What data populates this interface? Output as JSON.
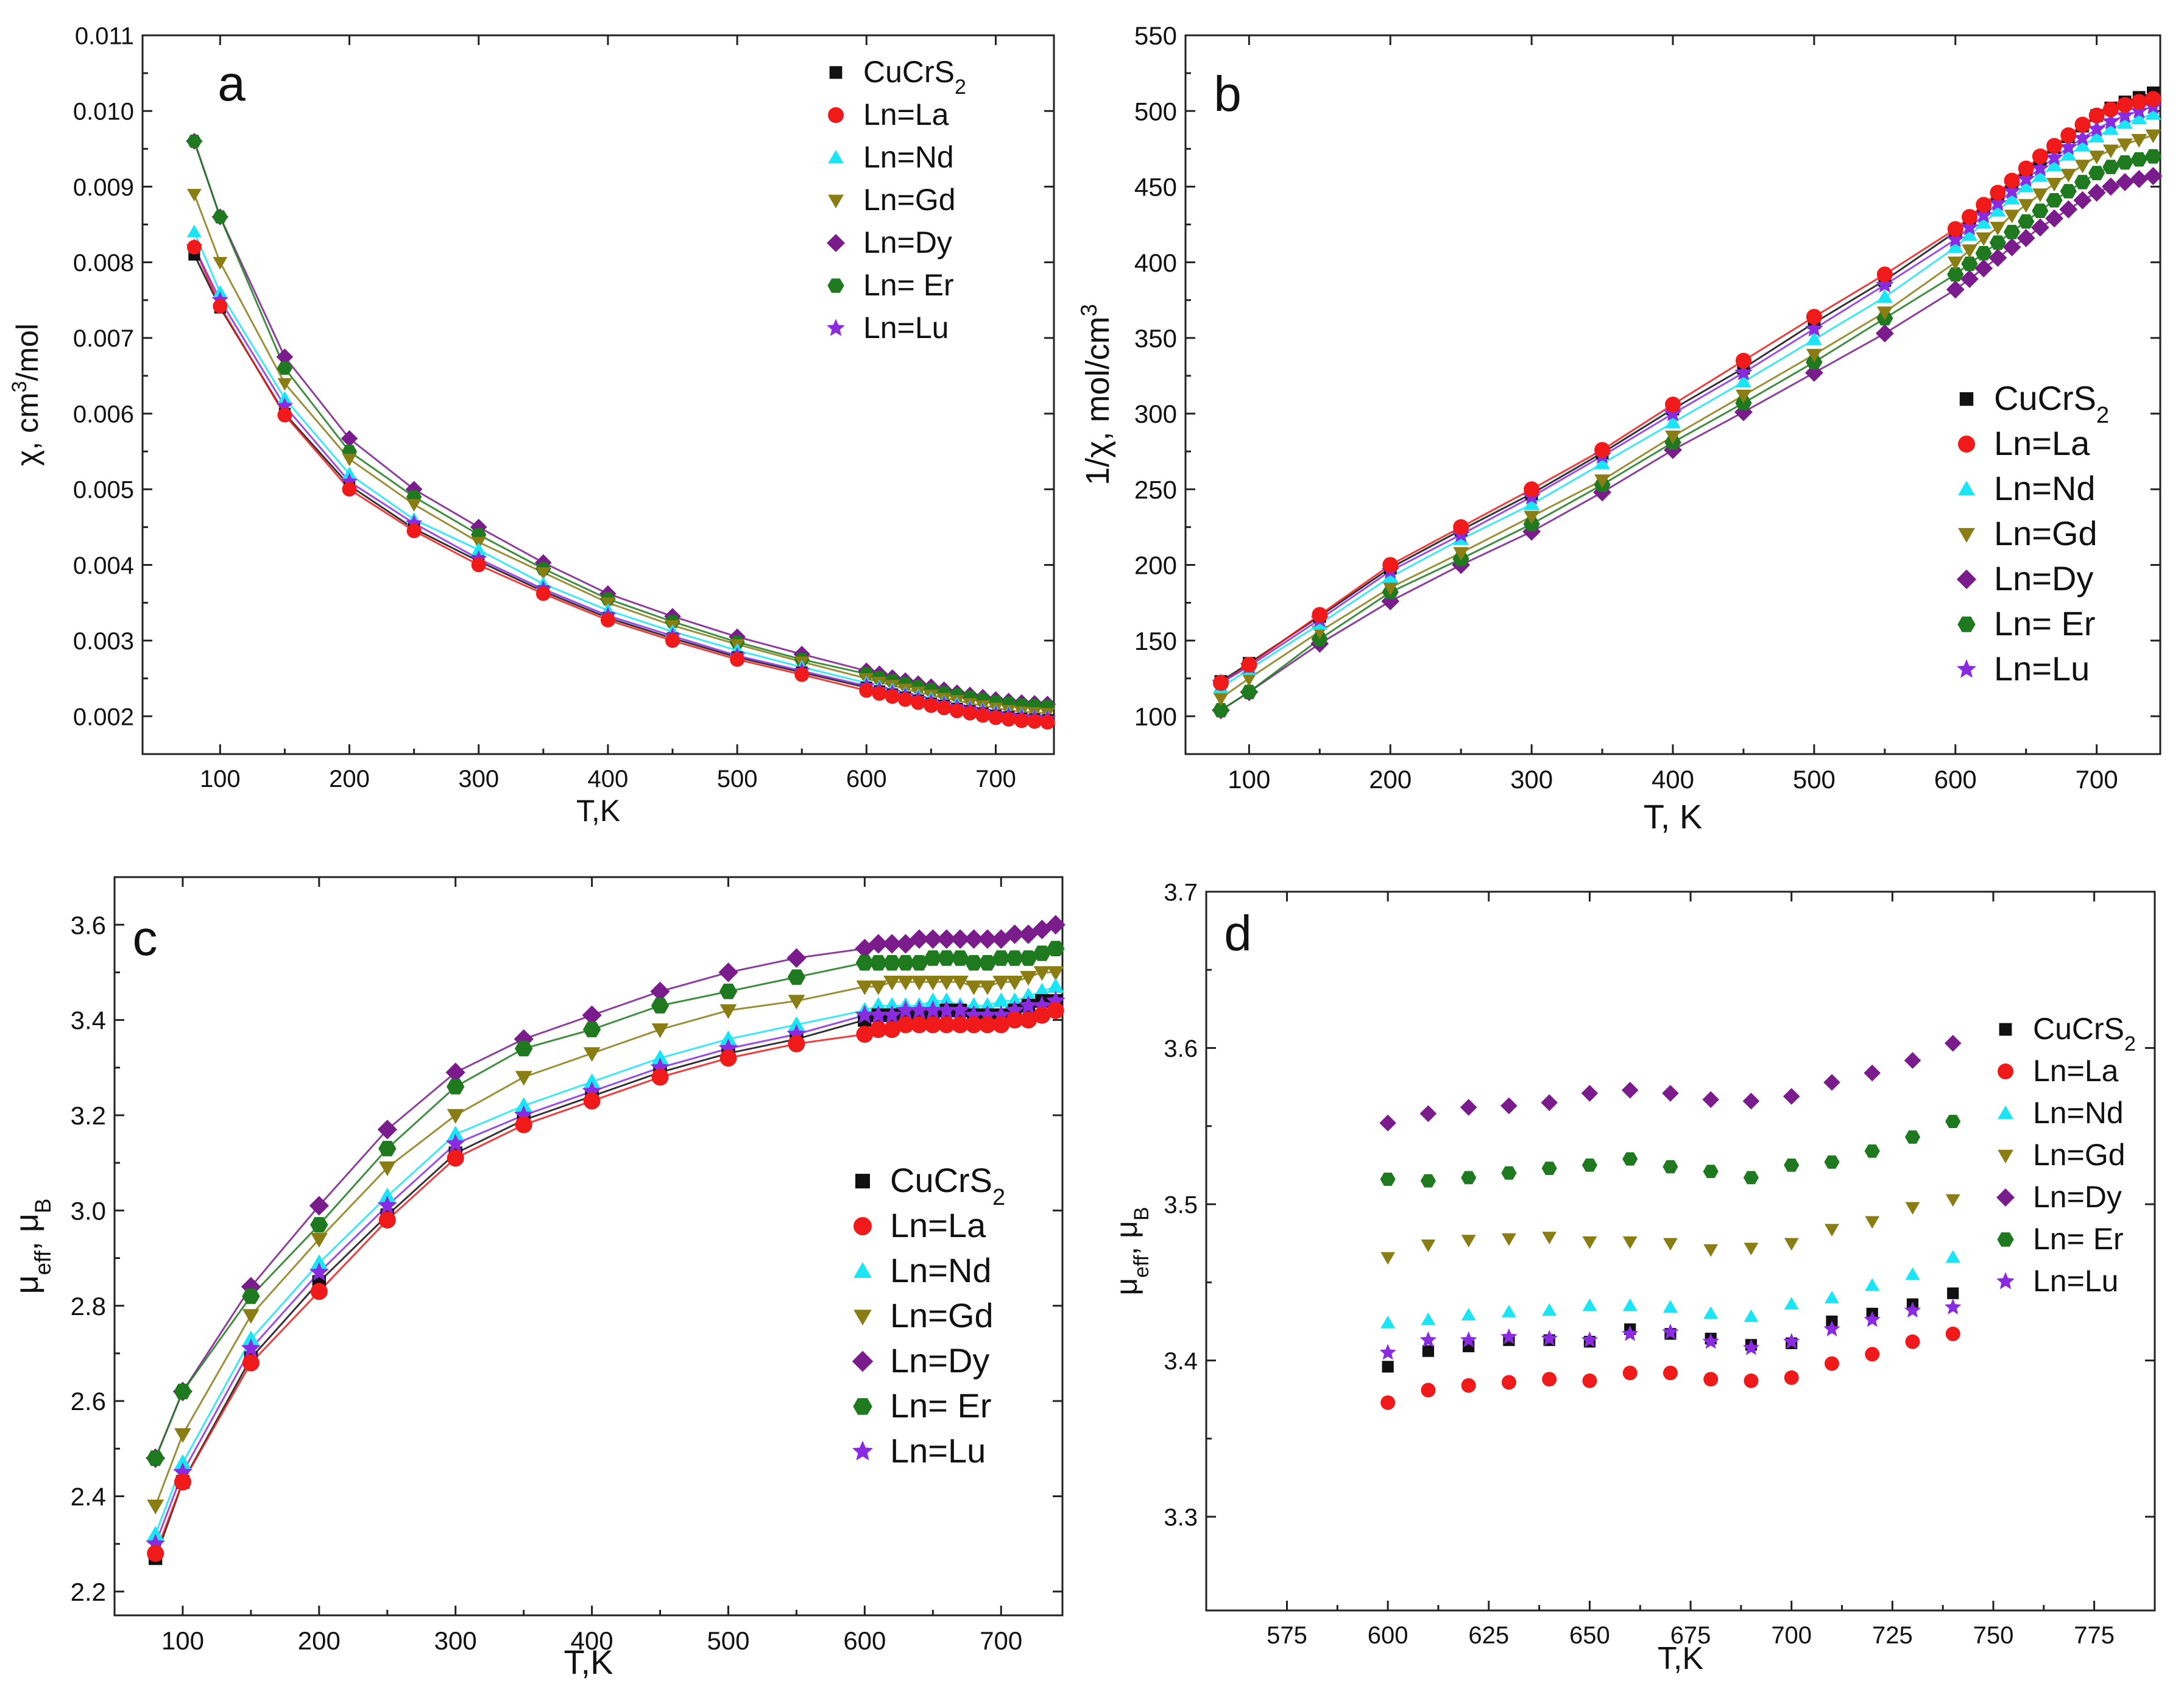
{
  "series_names": [
    "CuCrS₂",
    "Ln=La",
    "Ln=Nd",
    "Ln=Gd",
    "Ln=Dy",
    "Ln= Er",
    "Ln=Lu"
  ],
  "series_colors": [
    "#111111",
    "#f11a1a",
    "#19e5f5",
    "#8a7d14",
    "#7a1c8c",
    "#1f7a1f",
    "#8a2be2"
  ],
  "series_markers": [
    "square",
    "circle",
    "triangle-up",
    "triangle-down",
    "diamond",
    "hexagon",
    "star"
  ],
  "chart_data": [
    {
      "id": "a",
      "type": "scatter",
      "panel_label": "a",
      "xlabel": "T,K",
      "ylabel": "χ, cm³/mol",
      "xlim": [
        40,
        745
      ],
      "ylim": [
        0.0015,
        0.011
      ],
      "xticks": [
        100,
        200,
        300,
        400,
        500,
        600,
        700
      ],
      "yticks": [
        0.002,
        0.003,
        0.004,
        0.005,
        0.006,
        0.007,
        0.008,
        0.009,
        0.01,
        0.011
      ],
      "ytick_labels": [
        "0.002",
        "0.003",
        "0.004",
        "0.005",
        "0.006",
        "0.007",
        "0.008",
        "0.009",
        "0.010",
        "0.011"
      ],
      "legend": "top-right",
      "fit_lines": true,
      "x": [
        80,
        100,
        150,
        200,
        250,
        300,
        350,
        400,
        450,
        500,
        550,
        600,
        610,
        620,
        630,
        640,
        650,
        660,
        670,
        680,
        690,
        700,
        710,
        720,
        730,
        740
      ],
      "series": [
        {
          "name": "CuCrS₂",
          "values": [
            0.0081,
            0.0074,
            0.006,
            0.00505,
            0.00448,
            0.00405,
            0.00365,
            0.0033,
            0.00303,
            0.00278,
            0.00258,
            0.00238,
            0.00233,
            0.00229,
            0.00225,
            0.00221,
            0.00217,
            0.00214,
            0.0021,
            0.00207,
            0.00204,
            0.00201,
            0.00199,
            0.00197,
            0.00196,
            0.00195
          ]
        },
        {
          "name": "Ln=La",
          "values": [
            0.0082,
            0.00742,
            0.00598,
            0.005,
            0.00445,
            0.004,
            0.00362,
            0.00327,
            0.003,
            0.00275,
            0.00255,
            0.00234,
            0.0023,
            0.00226,
            0.00222,
            0.00218,
            0.00214,
            0.00211,
            0.00207,
            0.00204,
            0.00201,
            0.00198,
            0.00196,
            0.00194,
            0.00193,
            0.00192
          ]
        },
        {
          "name": "Ln=Nd",
          "values": [
            0.0084,
            0.0076,
            0.0062,
            0.0052,
            0.0046,
            0.0042,
            0.00375,
            0.0034,
            0.00312,
            0.00287,
            0.00265,
            0.00244,
            0.00239,
            0.00235,
            0.0023,
            0.00227,
            0.00223,
            0.00219,
            0.00216,
            0.00212,
            0.00209,
            0.00206,
            0.00204,
            0.00202,
            0.002,
            0.00199
          ]
        },
        {
          "name": "Ln=Gd",
          "values": [
            0.0089,
            0.008,
            0.0064,
            0.0054,
            0.0048,
            0.0043,
            0.0039,
            0.0035,
            0.0032,
            0.00295,
            0.00272,
            0.0025,
            0.00245,
            0.00241,
            0.00236,
            0.00232,
            0.00228,
            0.00224,
            0.00221,
            0.00217,
            0.00214,
            0.00211,
            0.00208,
            0.00206,
            0.00205,
            0.00204
          ]
        },
        {
          "name": "Ln=Dy",
          "values": [
            0.0096,
            0.0086,
            0.00675,
            0.00567,
            0.005,
            0.0045,
            0.00403,
            0.00362,
            0.00332,
            0.00305,
            0.00282,
            0.0026,
            0.00256,
            0.00251,
            0.00247,
            0.00243,
            0.00239,
            0.00235,
            0.00231,
            0.00228,
            0.00225,
            0.00222,
            0.0022,
            0.00218,
            0.00217,
            0.00216
          ]
        },
        {
          "name": "Ln= Er",
          "values": [
            0.0096,
            0.0086,
            0.0066,
            0.0055,
            0.0049,
            0.0044,
            0.00395,
            0.00355,
            0.00325,
            0.00298,
            0.00275,
            0.00256,
            0.00251,
            0.00247,
            0.00243,
            0.00239,
            0.00235,
            0.00231,
            0.00228,
            0.00225,
            0.00222,
            0.00219,
            0.00217,
            0.00215,
            0.00214,
            0.00213
          ]
        },
        {
          "name": "Ln=Lu",
          "values": [
            0.0082,
            0.0075,
            0.0061,
            0.0051,
            0.00455,
            0.00408,
            0.00368,
            0.00333,
            0.00306,
            0.0028,
            0.0026,
            0.0024,
            0.00235,
            0.00231,
            0.00227,
            0.00223,
            0.00219,
            0.00216,
            0.00212,
            0.00209,
            0.00206,
            0.00203,
            0.00201,
            0.00199,
            0.00198,
            0.00197
          ]
        }
      ]
    },
    {
      "id": "b",
      "type": "scatter",
      "panel_label": "b",
      "xlabel": "T, K",
      "ylabel": "1/χ, mol/cm³",
      "xlim": [
        55,
        745
      ],
      "ylim": [
        75,
        550
      ],
      "xticks": [
        100,
        200,
        300,
        400,
        500,
        600,
        700
      ],
      "yticks": [
        100,
        150,
        200,
        250,
        300,
        350,
        400,
        450,
        500,
        550
      ],
      "ytick_labels": [
        "100",
        "150",
        "200",
        "250",
        "300",
        "350",
        "400",
        "450",
        "500",
        "550"
      ],
      "legend": "right",
      "fit_lines": true,
      "x": [
        80,
        100,
        150,
        200,
        250,
        300,
        350,
        400,
        450,
        500,
        550,
        600,
        610,
        620,
        630,
        640,
        650,
        660,
        670,
        680,
        690,
        700,
        710,
        720,
        730,
        740
      ],
      "series": [
        {
          "name": "CuCrS₂",
          "values": [
            123,
            135,
            166,
            198,
            223,
            247,
            274,
            303,
            330,
            360,
            388,
            420,
            428,
            437,
            445,
            453,
            461,
            468,
            476,
            483,
            490,
            497,
            502,
            506,
            509,
            512
          ]
        },
        {
          "name": "Ln=La",
          "values": [
            122,
            134,
            167,
            200,
            225,
            250,
            276,
            306,
            335,
            364,
            392,
            422,
            430,
            438,
            446,
            454,
            462,
            470,
            477,
            484,
            491,
            497,
            501,
            504,
            506,
            508
          ]
        },
        {
          "name": "Ln=Nd",
          "values": [
            119,
            131,
            161,
            192,
            217,
            240,
            267,
            294,
            321,
            349,
            377,
            410,
            418,
            426,
            434,
            442,
            450,
            457,
            464,
            471,
            477,
            483,
            488,
            492,
            495,
            498
          ]
        },
        {
          "name": "Ln=Gd",
          "values": [
            112,
            125,
            156,
            185,
            208,
            232,
            256,
            285,
            312,
            339,
            367,
            400,
            408,
            416,
            423,
            431,
            438,
            445,
            452,
            458,
            464,
            470,
            474,
            478,
            481,
            484
          ]
        },
        {
          "name": "Ln=Dy",
          "values": [
            104,
            116,
            148,
            176,
            200,
            222,
            248,
            276,
            301,
            327,
            353,
            382,
            389,
            396,
            403,
            410,
            416,
            423,
            429,
            435,
            441,
            446,
            450,
            453,
            455,
            457
          ]
        },
        {
          "name": "Ln= Er",
          "values": [
            104,
            116,
            151,
            182,
            204,
            227,
            253,
            281,
            307,
            334,
            363,
            392,
            399,
            406,
            413,
            420,
            427,
            434,
            441,
            447,
            453,
            459,
            463,
            466,
            468,
            470
          ]
        },
        {
          "name": "Ln=Lu",
          "values": [
            122,
            133,
            164,
            196,
            220,
            245,
            272,
            300,
            327,
            356,
            385,
            415,
            423,
            431,
            439,
            447,
            455,
            462,
            469,
            476,
            482,
            488,
            493,
            497,
            500,
            503
          ]
        }
      ]
    },
    {
      "id": "c",
      "type": "scatter",
      "panel_label": "c",
      "xlabel": "T,K",
      "ylabel": "μeff, μB",
      "xlim": [
        50,
        745
      ],
      "ylim": [
        2.15,
        3.7
      ],
      "xticks": [
        100,
        200,
        300,
        400,
        500,
        600,
        700
      ],
      "yticks": [
        2.2,
        2.4,
        2.6,
        2.8,
        3.0,
        3.2,
        3.4,
        3.6
      ],
      "ytick_labels": [
        "2.2",
        "2.4",
        "2.6",
        "2.8",
        "3.0",
        "3.2",
        "3.4",
        "3.6"
      ],
      "legend": "bottom-right",
      "fit_lines": true,
      "x": [
        80,
        100,
        150,
        200,
        250,
        300,
        350,
        400,
        450,
        500,
        550,
        600,
        610,
        620,
        630,
        640,
        650,
        660,
        670,
        680,
        690,
        700,
        710,
        720,
        730,
        740
      ],
      "series": [
        {
          "name": "CuCrS₂",
          "values": [
            2.27,
            2.43,
            2.69,
            2.85,
            2.99,
            3.12,
            3.19,
            3.24,
            3.29,
            3.33,
            3.36,
            3.4,
            3.41,
            3.41,
            3.41,
            3.41,
            3.41,
            3.42,
            3.42,
            3.41,
            3.41,
            3.41,
            3.42,
            3.43,
            3.44,
            3.44
          ]
        },
        {
          "name": "Ln=La",
          "values": [
            2.28,
            2.43,
            2.68,
            2.83,
            2.98,
            3.11,
            3.18,
            3.23,
            3.28,
            3.32,
            3.35,
            3.37,
            3.38,
            3.38,
            3.39,
            3.39,
            3.39,
            3.39,
            3.39,
            3.39,
            3.39,
            3.39,
            3.4,
            3.4,
            3.41,
            3.42
          ]
        },
        {
          "name": "Ln=Nd",
          "values": [
            2.32,
            2.47,
            2.73,
            2.89,
            3.03,
            3.16,
            3.22,
            3.27,
            3.32,
            3.36,
            3.39,
            3.42,
            3.43,
            3.43,
            3.43,
            3.43,
            3.44,
            3.44,
            3.43,
            3.43,
            3.43,
            3.44,
            3.44,
            3.45,
            3.46,
            3.47
          ]
        },
        {
          "name": "Ln=Gd",
          "values": [
            2.38,
            2.53,
            2.78,
            2.94,
            3.09,
            3.2,
            3.28,
            3.33,
            3.38,
            3.42,
            3.44,
            3.47,
            3.47,
            3.48,
            3.48,
            3.48,
            3.48,
            3.48,
            3.48,
            3.47,
            3.47,
            3.48,
            3.48,
            3.49,
            3.5,
            3.5
          ]
        },
        {
          "name": "Ln=Dy",
          "values": [
            2.48,
            2.62,
            2.84,
            3.01,
            3.17,
            3.29,
            3.36,
            3.41,
            3.46,
            3.5,
            3.53,
            3.55,
            3.56,
            3.56,
            3.56,
            3.57,
            3.57,
            3.57,
            3.57,
            3.57,
            3.57,
            3.57,
            3.58,
            3.58,
            3.59,
            3.6
          ]
        },
        {
          "name": "Ln= Er",
          "values": [
            2.48,
            2.62,
            2.82,
            2.97,
            3.13,
            3.26,
            3.34,
            3.38,
            3.43,
            3.46,
            3.49,
            3.52,
            3.52,
            3.52,
            3.52,
            3.52,
            3.53,
            3.53,
            3.53,
            3.52,
            3.52,
            3.53,
            3.53,
            3.53,
            3.54,
            3.55
          ]
        },
        {
          "name": "Ln=Lu",
          "values": [
            2.3,
            2.45,
            2.71,
            2.87,
            3.01,
            3.14,
            3.2,
            3.25,
            3.3,
            3.34,
            3.37,
            3.41,
            3.41,
            3.41,
            3.42,
            3.42,
            3.42,
            3.42,
            3.42,
            3.41,
            3.41,
            3.41,
            3.42,
            3.43,
            3.43,
            3.44
          ]
        }
      ]
    },
    {
      "id": "d",
      "type": "scatter",
      "panel_label": "d",
      "xlabel": "T,K",
      "ylabel": "μeff, μB",
      "xlim": [
        555,
        790
      ],
      "ylim": [
        3.24,
        3.7
      ],
      "xticks": [
        575,
        600,
        625,
        650,
        675,
        700,
        725,
        750,
        775
      ],
      "yticks": [
        3.3,
        3.4,
        3.5,
        3.6,
        3.7
      ],
      "ytick_labels": [
        "3.3",
        "3.4",
        "3.5",
        "3.6",
        "3.7"
      ],
      "legend": "right",
      "fit_lines": false,
      "x": [
        600,
        610,
        620,
        630,
        640,
        650,
        660,
        670,
        680,
        690,
        700,
        710,
        720,
        730,
        740
      ],
      "series": [
        {
          "name": "CuCrS₂",
          "values": [
            3.396,
            3.406,
            3.409,
            3.413,
            3.413,
            3.412,
            3.42,
            3.417,
            3.414,
            3.41,
            3.411,
            3.425,
            3.43,
            3.436,
            3.443
          ]
        },
        {
          "name": "Ln=La",
          "values": [
            3.373,
            3.381,
            3.384,
            3.386,
            3.388,
            3.387,
            3.392,
            3.392,
            3.388,
            3.387,
            3.389,
            3.398,
            3.404,
            3.412,
            3.417
          ]
        },
        {
          "name": "Ln=Nd",
          "values": [
            3.424,
            3.426,
            3.429,
            3.431,
            3.432,
            3.435,
            3.435,
            3.434,
            3.43,
            3.428,
            3.436,
            3.44,
            3.448,
            3.455,
            3.466
          ]
        },
        {
          "name": "Ln=Gd",
          "values": [
            3.466,
            3.474,
            3.477,
            3.478,
            3.479,
            3.476,
            3.476,
            3.475,
            3.471,
            3.472,
            3.475,
            3.484,
            3.489,
            3.498,
            3.503
          ]
        },
        {
          "name": "Ln=Dy",
          "values": [
            3.552,
            3.558,
            3.562,
            3.563,
            3.565,
            3.571,
            3.573,
            3.571,
            3.567,
            3.566,
            3.569,
            3.578,
            3.584,
            3.592,
            3.603
          ]
        },
        {
          "name": "Ln= Er",
          "values": [
            3.516,
            3.515,
            3.517,
            3.52,
            3.523,
            3.525,
            3.529,
            3.524,
            3.521,
            3.517,
            3.525,
            3.527,
            3.534,
            3.543,
            3.553
          ]
        },
        {
          "name": "Ln=Lu",
          "values": [
            3.405,
            3.413,
            3.413,
            3.415,
            3.414,
            3.413,
            3.417,
            3.418,
            3.412,
            3.408,
            3.412,
            3.42,
            3.426,
            3.432,
            3.434
          ]
        }
      ]
    }
  ]
}
